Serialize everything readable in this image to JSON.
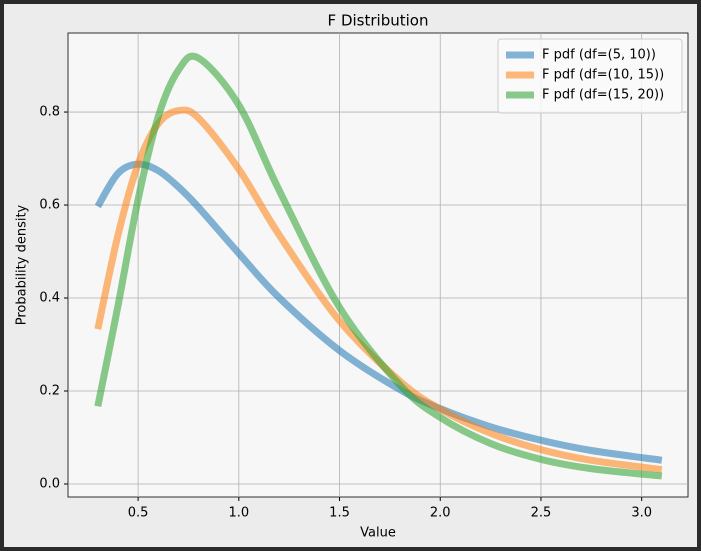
{
  "chart_data": {
    "type": "line",
    "title": "F Distribution",
    "x_label": "Value",
    "y_label": "Probability density",
    "x": [
      0.3,
      0.4,
      0.5,
      0.6,
      0.7,
      0.8,
      1.0,
      1.2,
      1.5,
      1.8,
      2.0,
      2.25,
      2.5,
      2.75,
      3.1
    ],
    "series": [
      {
        "name": "F pdf (df=(5, 10))",
        "color": "#1f77b4",
        "values": [
          0.597,
          0.668,
          0.688,
          0.674,
          0.639,
          0.595,
          0.496,
          0.401,
          0.287,
          0.203,
          0.162,
          0.123,
          0.094,
          0.072,
          0.051
        ]
      },
      {
        "name": "F pdf (df=(10, 15))",
        "color": "#ff7f0e",
        "values": [
          0.333,
          0.535,
          0.688,
          0.775,
          0.803,
          0.787,
          0.677,
          0.536,
          0.351,
          0.221,
          0.161,
          0.109,
          0.074,
          0.051,
          0.031
        ]
      },
      {
        "name": "F pdf (df=(15, 20))",
        "color": "#2ca02c",
        "values": [
          0.167,
          0.383,
          0.612,
          0.79,
          0.89,
          0.916,
          0.815,
          0.632,
          0.38,
          0.213,
          0.143,
          0.087,
          0.053,
          0.033,
          0.017
        ]
      }
    ],
    "xlim": [
      0.152,
      3.23
    ],
    "ylim": [
      -0.028,
      0.97
    ],
    "xticks": [
      0.5,
      {
        "value": 1.0,
        "label": "1.0"
      },
      1.5,
      {
        "value": 2.0,
        "label": "2.0"
      },
      2.5,
      {
        "value": 3.0,
        "label": "3.0"
      }
    ],
    "yticks": [
      {
        "value": 0.0,
        "label": "0.0"
      },
      0.2,
      0.4,
      0.6,
      0.8
    ],
    "grid": true,
    "legend": "upper right"
  }
}
